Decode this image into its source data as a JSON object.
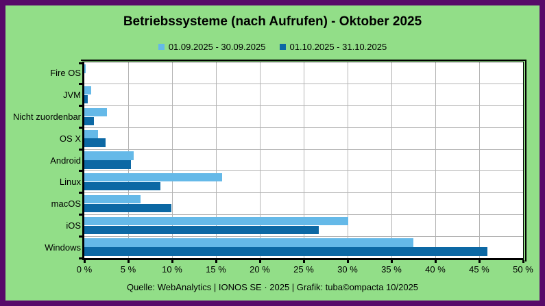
{
  "page": {
    "background": "#92de88",
    "border_color": "#570a69",
    "plot_background": "#ffffff",
    "gridline_color": "#b3b3b3",
    "axis_color": "#000000",
    "text_color": "#000000"
  },
  "footer": {
    "text": "Quelle: WebAnalytics | IONOS SE · 2025 | Grafik: tuba©ompacta 10/2025"
  },
  "chart_data": {
    "type": "bar",
    "orientation": "horizontal",
    "title": "Betriebssysteme (nach Aufrufen) - Oktober 2025",
    "categories": [
      "Fire OS",
      "JVM",
      "Nicht zuordenbar",
      "OS X",
      "Android",
      "Linux",
      "macOS",
      "iOS",
      "Windows"
    ],
    "series": [
      {
        "name": "01.09.2025 - 30.09.2025",
        "color": "#65b9e8",
        "values": [
          0.15,
          0.8,
          2.6,
          1.6,
          5.6,
          15.7,
          6.4,
          30.1,
          37.5
        ]
      },
      {
        "name": "01.10.2025 - 31.10.2025",
        "color": "#0c68a4",
        "values": [
          0,
          0.4,
          1.1,
          2.4,
          5.3,
          8.7,
          9.9,
          26.7,
          45.9
        ]
      }
    ],
    "xlabel": "",
    "ylabel": "",
    "xlim": [
      0,
      50
    ],
    "xticks": [
      0,
      5,
      10,
      15,
      20,
      25,
      30,
      35,
      40,
      45,
      50
    ],
    "xtick_suffix": " %",
    "grid": true,
    "legend_position": "top"
  }
}
